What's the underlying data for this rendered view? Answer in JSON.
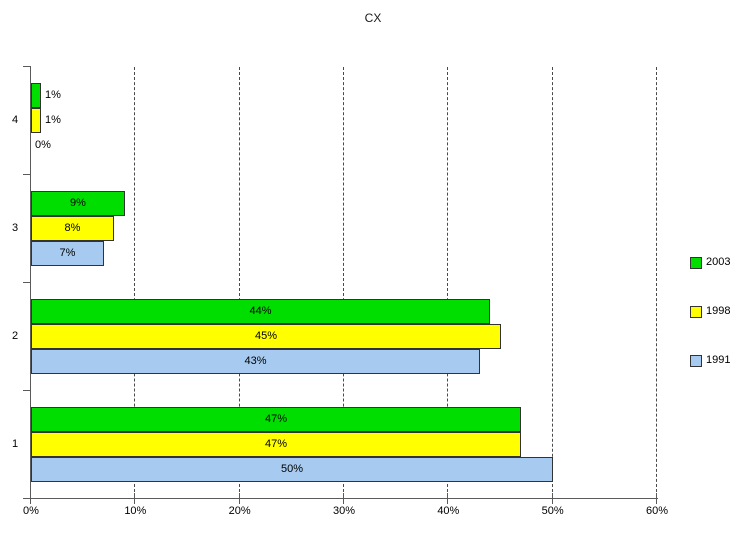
{
  "title": "CX",
  "chart_data": {
    "type": "bar",
    "orientation": "horizontal",
    "title": "CX",
    "categories": [
      "4",
      "3",
      "2",
      "1"
    ],
    "series": [
      {
        "name": "2003",
        "color": "#00DE00",
        "values": [
          1,
          9,
          44,
          47
        ],
        "labels": [
          "1%",
          "9%",
          "44%",
          "47%"
        ]
      },
      {
        "name": "1998",
        "color": "#FFFF00",
        "values": [
          1,
          8,
          45,
          47
        ],
        "labels": [
          "1%",
          "8%",
          "45%",
          "47%"
        ]
      },
      {
        "name": "1991",
        "color": "#A6CAF0",
        "values": [
          0,
          7,
          43,
          50
        ],
        "labels": [
          "0%",
          "7%",
          "43%",
          "50%"
        ]
      }
    ],
    "xlim": [
      0,
      60
    ],
    "x_ticks": [
      "0%",
      "10%",
      "20%",
      "30%",
      "40%",
      "50%",
      "60%"
    ],
    "x_tick_values": [
      0,
      10,
      20,
      30,
      40,
      50,
      60
    ],
    "grid": "vertical-dashed",
    "legend_position": "right",
    "legend_entries": [
      "2003",
      "1998",
      "1991"
    ]
  },
  "colors": {
    "background": "#ffffff",
    "axis": "#5a5a5a",
    "gridline": "#4a4a4a",
    "bar_border": "#333333",
    "text": "#000000",
    "series_2003": "#00DE00",
    "series_1998": "#FFFF00",
    "series_1991": "#A6CAF0"
  }
}
